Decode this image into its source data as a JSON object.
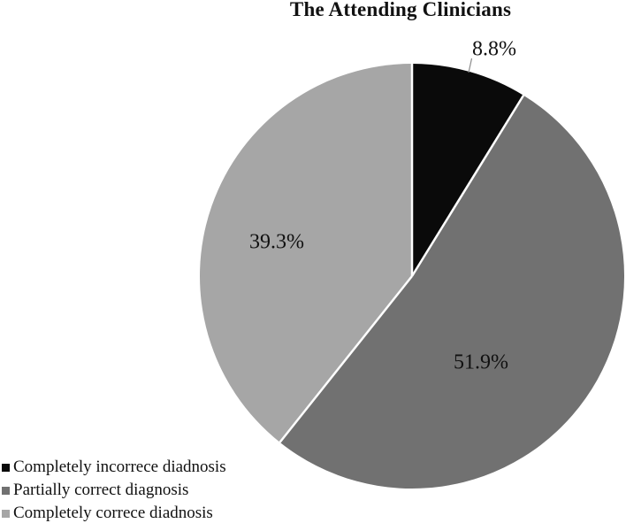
{
  "chart_data": {
    "type": "pie",
    "title": "The Attending Clinicians",
    "slices": [
      {
        "label": "Completely incorrece diadnosis",
        "value": 8.8,
        "display": "8.8%",
        "color": "#0a0a0a"
      },
      {
        "label": "Partially correct diagnosis",
        "value": 51.9,
        "display": "51.9%",
        "color": "#717171"
      },
      {
        "label": "Completely correce diadnosis",
        "value": 39.3,
        "display": "39.3%",
        "color": "#a6a6a6"
      }
    ],
    "start_position": "top",
    "direction": "clockwise",
    "divider_color": "#ffffff",
    "background_color": "#ffffff",
    "legend_position": "bottom-left",
    "leader_line": {
      "for_slice": "8.8%",
      "color": "#8c8c8c"
    }
  }
}
